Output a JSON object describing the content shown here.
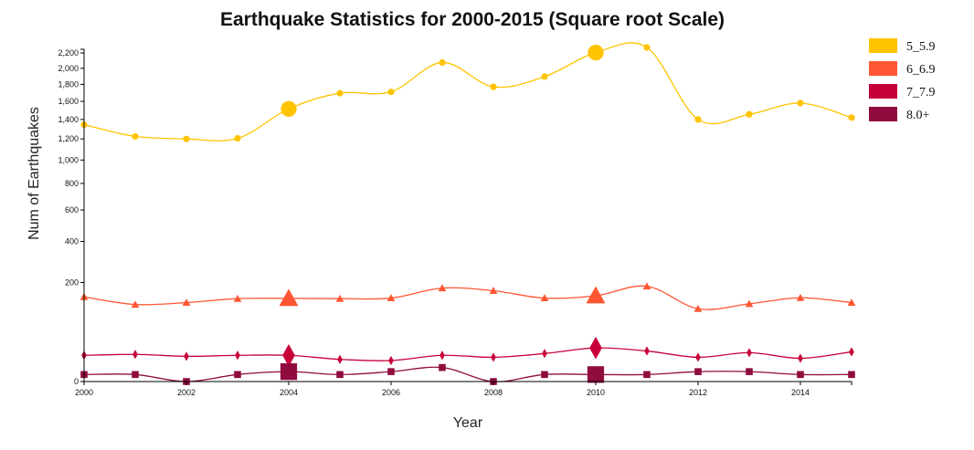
{
  "chart_data": {
    "type": "line",
    "title": "Earthquake Statistics for 2000-2015 (Square root Scale)",
    "xlabel": "Year",
    "ylabel": "Num of Earthquakes",
    "y_scale": "sqrt",
    "xlim": [
      2000,
      2015
    ],
    "ylim": [
      0,
      2250
    ],
    "x_ticks": [
      2000,
      2002,
      2004,
      2006,
      2008,
      2010,
      2012,
      2014
    ],
    "y_ticks": [
      0,
      200,
      400,
      600,
      800,
      1000,
      1200,
      1400,
      1600,
      1800,
      2000,
      2200
    ],
    "y_tick_labels": [
      "0",
      "200",
      "400",
      "600",
      "800",
      "1,000",
      "1,200",
      "1,400",
      "1,600",
      "1,800",
      "2,000",
      "2,200"
    ],
    "legend_position": "top-right",
    "x": [
      2000,
      2001,
      2002,
      2003,
      2004,
      2005,
      2006,
      2007,
      2008,
      2009,
      2010,
      2011,
      2012,
      2013,
      2014,
      2015
    ],
    "highlight_years": [
      2004,
      2010
    ],
    "series": [
      {
        "name": "5_5.9",
        "color": "#FFC300",
        "marker": "circle",
        "values": [
          1345,
          1225,
          1200,
          1205,
          1515,
          1695,
          1710,
          2075,
          1770,
          1895,
          2205,
          2275,
          1400,
          1455,
          1580,
          1420
        ]
      },
      {
        "name": "6_6.9",
        "color": "#FF5733",
        "marker": "triangle",
        "values": [
          146,
          121,
          127,
          140,
          141,
          140,
          142,
          178,
          168,
          142,
          150,
          185,
          108,
          123,
          143,
          127
        ]
      },
      {
        "name": "7_7.9",
        "color": "#C70039",
        "marker": "diamond",
        "values": [
          14,
          15,
          13,
          14,
          14,
          10,
          9,
          14,
          12,
          16,
          23,
          19,
          12,
          17,
          11,
          18
        ]
      },
      {
        "name": "8.0+",
        "color": "#900C3F",
        "marker": "square",
        "values": [
          1,
          1,
          0,
          1,
          2,
          1,
          2,
          4,
          0,
          1,
          1,
          1,
          2,
          2,
          1,
          1
        ]
      }
    ]
  }
}
